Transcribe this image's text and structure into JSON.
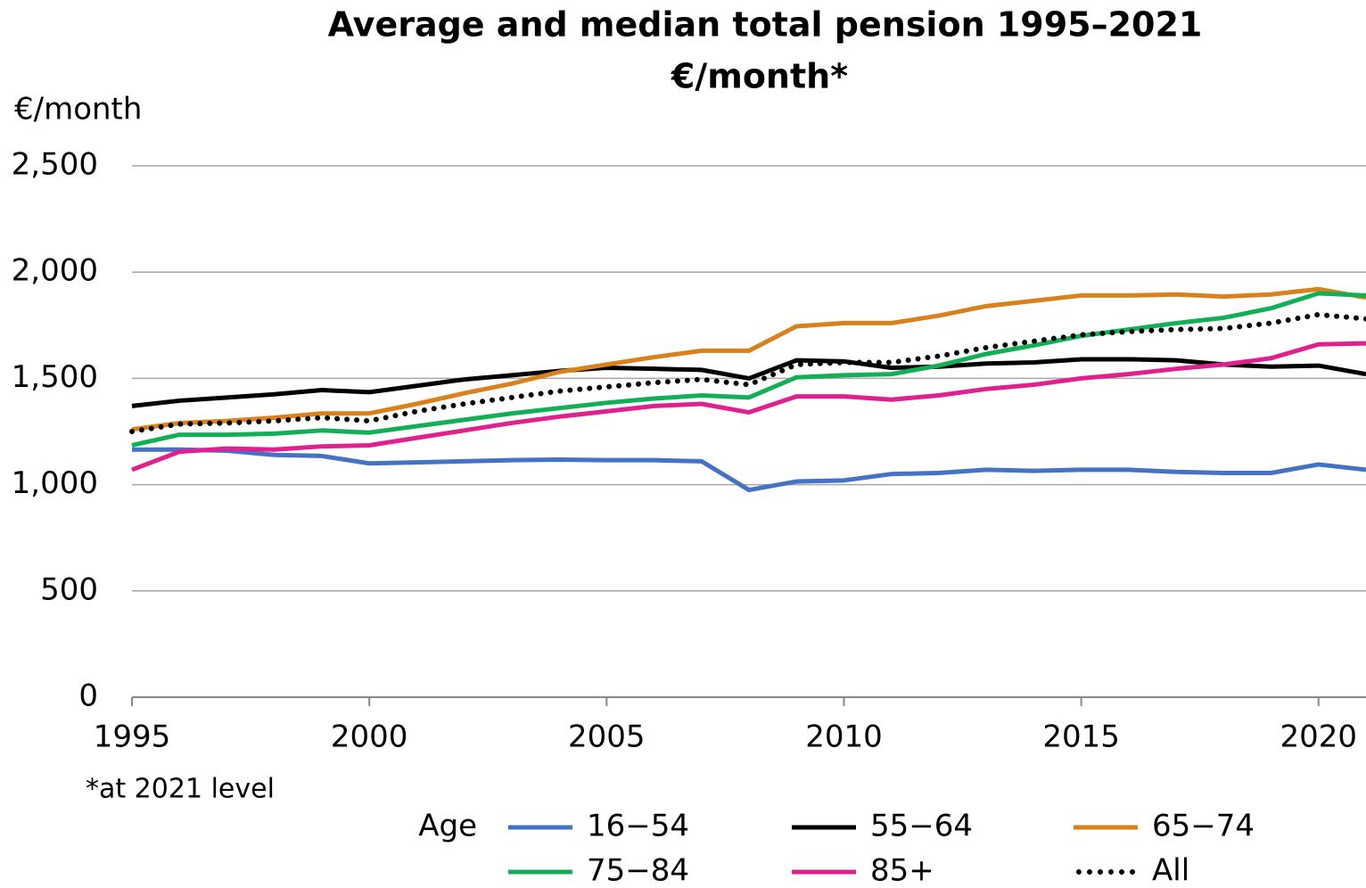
{
  "chart_data": {
    "type": "line",
    "title": "Average and median total pension 1995–2021",
    "subtitle": "€/month*",
    "y_axis_label": "€/month",
    "note": "*at 2021 level",
    "legend_title": "Age",
    "x": [
      1995,
      1996,
      1997,
      1998,
      1999,
      2000,
      2001,
      2002,
      2003,
      2004,
      2005,
      2006,
      2007,
      2008,
      2009,
      2010,
      2011,
      2012,
      2013,
      2014,
      2015,
      2016,
      2017,
      2018,
      2019,
      2020,
      2021
    ],
    "xlim": [
      1995,
      2021
    ],
    "xticks": [
      1995,
      2000,
      2005,
      2010,
      2015,
      2020
    ],
    "ylim": [
      0,
      2500
    ],
    "yticks": [
      0,
      500,
      {
        "value": 1000,
        "label": "1,000"
      },
      {
        "value": 1500,
        "label": "1,500"
      },
      {
        "value": 2000,
        "label": "2,000"
      },
      {
        "value": 2500,
        "label": "2,500"
      }
    ],
    "grid": true,
    "series": [
      {
        "name": "16−54",
        "color": "#4472c4",
        "style": "solid",
        "values": [
          1165,
          1165,
          1160,
          1140,
          1135,
          1100,
          1105,
          1110,
          1115,
          1118,
          1115,
          1115,
          1110,
          975,
          1015,
          1020,
          1050,
          1055,
          1070,
          1065,
          1070,
          1070,
          1060,
          1055,
          1055,
          1095,
          1070
        ]
      },
      {
        "name": "55−64",
        "color": "#000000",
        "style": "solid",
        "values": [
          1370,
          1395,
          1410,
          1425,
          1445,
          1435,
          1465,
          1495,
          1515,
          1535,
          1550,
          1545,
          1540,
          1500,
          1585,
          1580,
          1550,
          1555,
          1570,
          1575,
          1590,
          1590,
          1585,
          1565,
          1555,
          1560,
          1520
        ]
      },
      {
        "name": "65−74",
        "color": "#d9811b",
        "style": "solid",
        "values": [
          1260,
          1290,
          1300,
          1315,
          1335,
          1335,
          1380,
          1430,
          1475,
          1530,
          1565,
          1600,
          1630,
          1630,
          1745,
          1760,
          1760,
          1795,
          1840,
          1865,
          1890,
          1890,
          1895,
          1885,
          1895,
          1920,
          1880
        ]
      },
      {
        "name": "75−84",
        "color": "#11b056",
        "style": "solid",
        "values": [
          1185,
          1235,
          1235,
          1240,
          1255,
          1245,
          1275,
          1305,
          1335,
          1360,
          1385,
          1405,
          1420,
          1410,
          1505,
          1515,
          1520,
          1560,
          1615,
          1655,
          1700,
          1730,
          1760,
          1785,
          1830,
          1900,
          1890
        ]
      },
      {
        "name": "85+",
        "color": "#e0208f",
        "style": "solid",
        "values": [
          1070,
          1155,
          1170,
          1165,
          1180,
          1185,
          1220,
          1255,
          1290,
          1320,
          1345,
          1370,
          1380,
          1340,
          1415,
          1415,
          1400,
          1420,
          1450,
          1470,
          1500,
          1520,
          1545,
          1565,
          1595,
          1660,
          1665
        ]
      },
      {
        "name": "All",
        "color": "#000000",
        "style": "dotted",
        "values": [
          1250,
          1285,
          1290,
          1300,
          1315,
          1300,
          1345,
          1380,
          1410,
          1440,
          1460,
          1480,
          1495,
          1470,
          1565,
          1575,
          1575,
          1605,
          1645,
          1675,
          1705,
          1720,
          1730,
          1735,
          1760,
          1800,
          1780
        ]
      }
    ]
  }
}
